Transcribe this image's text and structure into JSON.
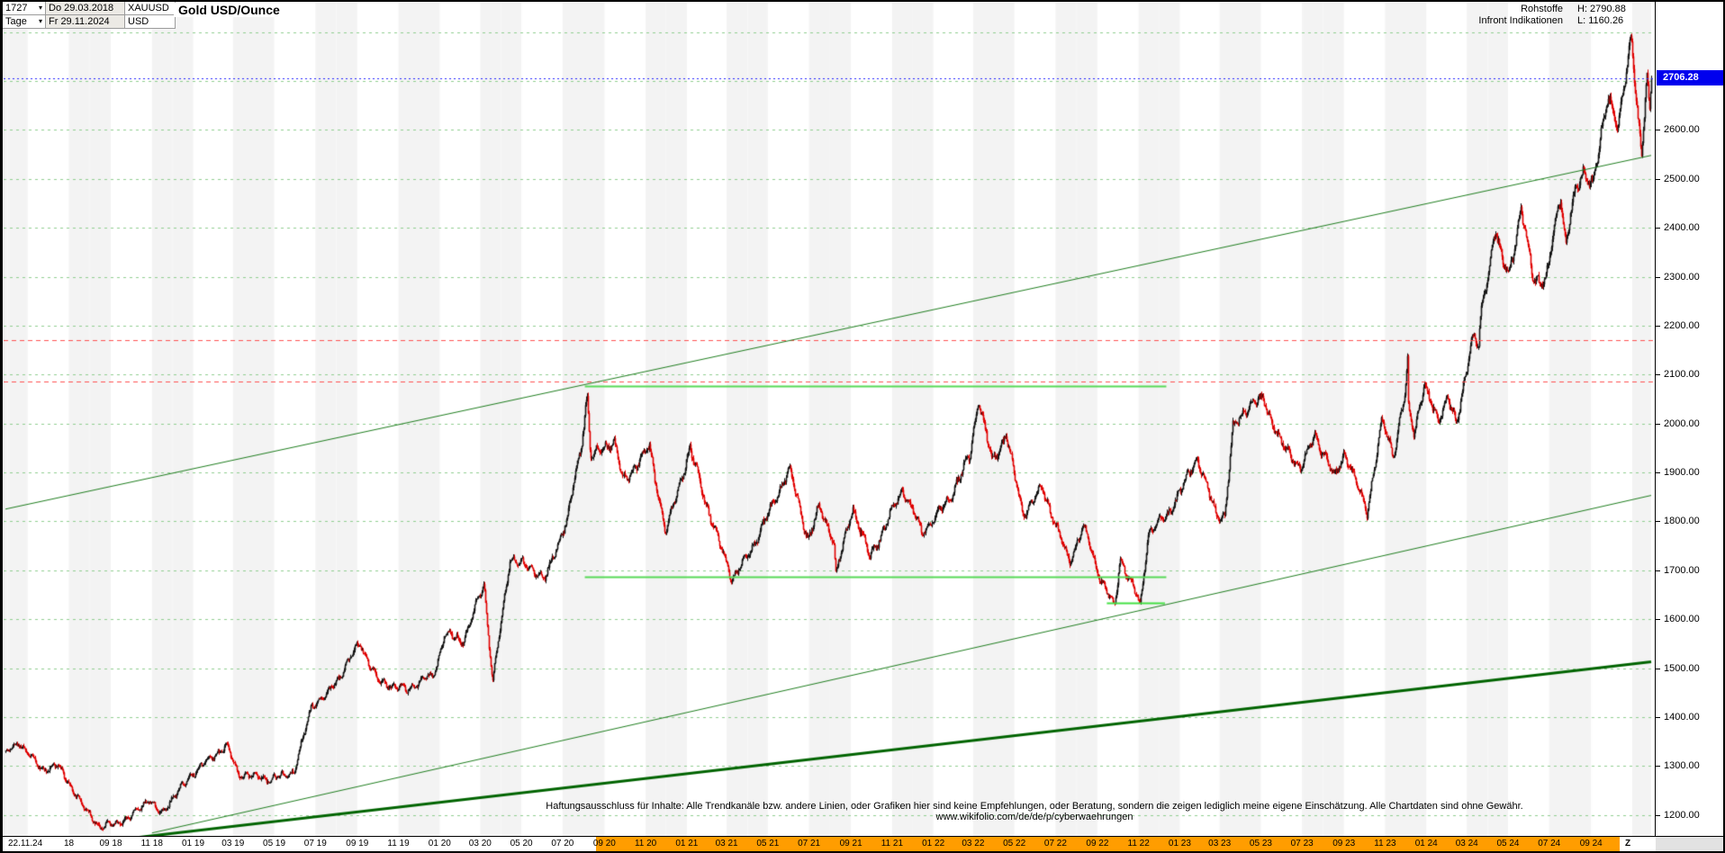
{
  "header": {
    "bars_count": "1727",
    "start_date": "Do 29.03.2018",
    "symbol": "XAUUSD",
    "timeframe": "Tage",
    "end_date": "Fr 29.11.2024",
    "currency": "USD",
    "title": "Gold USD/Ounce",
    "right": {
      "category": "Rohstoffe",
      "high": "H: 2790.88",
      "source": "Infront Indikationen",
      "low": "L: 1160.26"
    }
  },
  "icons": {
    "dropdown_arrow": "▾"
  },
  "colors": {
    "candle_up": "#151515",
    "candle_down": "#e00000",
    "grid": "#8fce8f",
    "band": "#f3f3f3",
    "highlight_orange": "#ff9d00",
    "last_price_bg": "#0000ee",
    "last_price_line": "#2222ff",
    "resistance": "#ff5050",
    "support_segment": "#57d957",
    "trend": "#1e7d1e",
    "trend_major": "#006400"
  },
  "price_axis": {
    "last_price": "2706.28",
    "ticks": [
      "2600.00",
      "2500.00",
      "2400.00",
      "2300.00",
      "2200.00",
      "2100.00",
      "2000.00",
      "1900.00",
      "1800.00",
      "1700.00",
      "1600.00",
      "1500.00",
      "1400.00",
      "1300.00",
      "1200.00"
    ]
  },
  "x_axis": {
    "z_label": "Z",
    "highlight": {
      "from": "2020-08-20",
      "color": "#ff9d00"
    },
    "labels": [
      {
        "label": "22.11.24",
        "fixed": "left"
      },
      {
        "label": "18",
        "date": "2018-07-01"
      },
      {
        "label": "09 18",
        "date": "2018-09-01"
      },
      {
        "label": "11 18",
        "date": "2018-11-01"
      },
      {
        "label": "01 19",
        "date": "2019-01-01"
      },
      {
        "label": "03 19",
        "date": "2019-03-01"
      },
      {
        "label": "05 19",
        "date": "2019-05-01"
      },
      {
        "label": "07 19",
        "date": "2019-07-01"
      },
      {
        "label": "09 19",
        "date": "2019-09-01"
      },
      {
        "label": "11 19",
        "date": "2019-11-01"
      },
      {
        "label": "01 20",
        "date": "2020-01-01"
      },
      {
        "label": "03 20",
        "date": "2020-03-01"
      },
      {
        "label": "05 20",
        "date": "2020-05-01"
      },
      {
        "label": "07 20",
        "date": "2020-07-01"
      },
      {
        "label": "09 20",
        "date": "2020-09-01"
      },
      {
        "label": "11 20",
        "date": "2020-11-01"
      },
      {
        "label": "01 21",
        "date": "2021-01-01"
      },
      {
        "label": "03 21",
        "date": "2021-03-01"
      },
      {
        "label": "05 21",
        "date": "2021-05-01"
      },
      {
        "label": "07 21",
        "date": "2021-07-01"
      },
      {
        "label": "09 21",
        "date": "2021-09-01"
      },
      {
        "label": "11 21",
        "date": "2021-11-01"
      },
      {
        "label": "01 22",
        "date": "2022-01-01"
      },
      {
        "label": "03 22",
        "date": "2022-03-01"
      },
      {
        "label": "05 22",
        "date": "2022-05-01"
      },
      {
        "label": "07 22",
        "date": "2022-07-01"
      },
      {
        "label": "09 22",
        "date": "2022-09-01"
      },
      {
        "label": "11 22",
        "date": "2022-11-01"
      },
      {
        "label": "01 23",
        "date": "2023-01-01"
      },
      {
        "label": "03 23",
        "date": "2023-03-01"
      },
      {
        "label": "05 23",
        "date": "2023-05-01"
      },
      {
        "label": "07 23",
        "date": "2023-07-01"
      },
      {
        "label": "09 23",
        "date": "2023-09-01"
      },
      {
        "label": "11 23",
        "date": "2023-11-01"
      },
      {
        "label": "01 24",
        "date": "2024-01-01"
      },
      {
        "label": "03 24",
        "date": "2024-03-01"
      },
      {
        "label": "05 24",
        "date": "2024-05-01"
      },
      {
        "label": "07 24",
        "date": "2024-07-01"
      },
      {
        "label": "09 24",
        "date": "2024-09-01"
      }
    ]
  },
  "footer": {
    "disclaimer": "Haftungsausschluss für Inhalte: Alle Trendkanäle bzw. andere Linien, oder Grafiken hier sind keine Empfehlungen, oder Beratung, sondern die zeigen lediglich meine eigene Einschätzung. Alle Chartdaten sind ohne Gewähr. www.wikifolio.com/de/de/p/cyberwaehrungen"
  },
  "chart_data": {
    "type": "candlestick",
    "title": "Gold USD/Ounce",
    "symbol": "XAUUSD",
    "timeframe": "Tage",
    "bars_count": 1727,
    "x_range": [
      "2018-03-29",
      "2024-11-29"
    ],
    "high": 2790.88,
    "low": 1160.26,
    "last": 2706.28,
    "ylim": [
      1157,
      2862
    ],
    "y_tick_step": 100,
    "grid": {
      "horizontal_step": 100,
      "style": "dashed",
      "color": "#8fce8f"
    },
    "anchors": [
      [
        "2018-03-29",
        1325
      ],
      [
        "2018-04-18",
        1349
      ],
      [
        "2018-05-21",
        1292
      ],
      [
        "2018-06-14",
        1302
      ],
      [
        "2018-07-19",
        1222
      ],
      [
        "2018-08-16",
        1174
      ],
      [
        "2018-09-28",
        1192
      ],
      [
        "2018-10-26",
        1233
      ],
      [
        "2018-11-13",
        1202
      ],
      [
        "2018-12-28",
        1281
      ],
      [
        "2019-01-31",
        1323
      ],
      [
        "2019-02-20",
        1341
      ],
      [
        "2019-03-07",
        1285
      ],
      [
        "2019-04-23",
        1272
      ],
      [
        "2019-05-30",
        1288
      ],
      [
        "2019-06-25",
        1423
      ],
      [
        "2019-07-18",
        1446
      ],
      [
        "2019-08-13",
        1501
      ],
      [
        "2019-09-04",
        1552
      ],
      [
        "2019-10-01",
        1472
      ],
      [
        "2019-11-12",
        1456
      ],
      [
        "2019-12-23",
        1487
      ],
      [
        "2020-01-08",
        1571
      ],
      [
        "2020-02-05",
        1556
      ],
      [
        "2020-03-06",
        1674
      ],
      [
        "2020-03-19",
        1471
      ],
      [
        "2020-04-14",
        1727
      ],
      [
        "2020-06-05",
        1683
      ],
      [
        "2020-07-08",
        1810
      ],
      [
        "2020-07-28",
        1954
      ],
      [
        "2020-08-06",
        2063
      ],
      [
        "2020-08-11",
        1932
      ],
      [
        "2020-09-15",
        1966
      ],
      [
        "2020-09-28",
        1881
      ],
      [
        "2020-11-06",
        1951
      ],
      [
        "2020-11-30",
        1776
      ],
      [
        "2021-01-05",
        1949
      ],
      [
        "2021-01-27",
        1844
      ],
      [
        "2021-03-08",
        1683
      ],
      [
        "2021-04-01",
        1729
      ],
      [
        "2021-06-01",
        1907
      ],
      [
        "2021-06-29",
        1761
      ],
      [
        "2021-07-15",
        1829
      ],
      [
        "2021-08-06",
        1763
      ],
      [
        "2021-08-09",
        1690
      ],
      [
        "2021-09-03",
        1828
      ],
      [
        "2021-09-29",
        1726
      ],
      [
        "2021-11-16",
        1867
      ],
      [
        "2021-12-15",
        1777
      ],
      [
        "2022-01-25",
        1848
      ],
      [
        "2022-02-24",
        1936
      ],
      [
        "2022-03-08",
        2052
      ],
      [
        "2022-03-29",
        1919
      ],
      [
        "2022-04-18",
        1978
      ],
      [
        "2022-05-13",
        1811
      ],
      [
        "2022-06-10",
        1871
      ],
      [
        "2022-07-21",
        1715
      ],
      [
        "2022-08-10",
        1792
      ],
      [
        "2022-09-01",
        1697
      ],
      [
        "2022-09-26",
        1622
      ],
      [
        "2022-10-04",
        1726
      ],
      [
        "2022-11-03",
        1629
      ],
      [
        "2022-11-15",
        1777
      ],
      [
        "2022-12-13",
        1811
      ],
      [
        "2023-01-26",
        1930
      ],
      [
        "2023-02-24",
        1811
      ],
      [
        "2023-03-08",
        1813
      ],
      [
        "2023-03-20",
        1989
      ],
      [
        "2023-04-13",
        2040
      ],
      [
        "2023-05-04",
        2050
      ],
      [
        "2023-05-30",
        1959
      ],
      [
        "2023-06-29",
        1908
      ],
      [
        "2023-07-20",
        1977
      ],
      [
        "2023-08-17",
        1889
      ],
      [
        "2023-09-01",
        1940
      ],
      [
        "2023-10-05",
        1820
      ],
      [
        "2023-10-27",
        2006
      ],
      [
        "2023-11-13",
        1937
      ],
      [
        "2023-12-01",
        2071
      ],
      [
        "2023-12-04",
        2130
      ],
      [
        "2023-12-05",
        2028
      ],
      [
        "2023-12-13",
        1981
      ],
      [
        "2023-12-28",
        2077
      ],
      [
        "2024-01-17",
        2006
      ],
      [
        "2024-02-01",
        2055
      ],
      [
        "2024-02-14",
        1992
      ],
      [
        "2024-03-08",
        2178
      ],
      [
        "2024-03-18",
        2160
      ],
      [
        "2024-03-21",
        2220
      ],
      [
        "2024-04-12",
        2401
      ],
      [
        "2024-04-22",
        2327
      ],
      [
        "2024-05-02",
        2304
      ],
      [
        "2024-05-20",
        2438
      ],
      [
        "2024-06-07",
        2293
      ],
      [
        "2024-06-26",
        2298
      ],
      [
        "2024-07-17",
        2469
      ],
      [
        "2024-07-25",
        2364
      ],
      [
        "2024-08-02",
        2443
      ],
      [
        "2024-08-20",
        2514
      ],
      [
        "2024-09-04",
        2494
      ],
      [
        "2024-09-26",
        2672
      ],
      [
        "2024-10-10",
        2608
      ],
      [
        "2024-10-23",
        2716
      ],
      [
        "2024-10-30",
        2787
      ],
      [
        "2024-11-14",
        2547
      ],
      [
        "2024-11-22",
        2716
      ],
      [
        "2024-11-26",
        2632
      ],
      [
        "2024-11-29",
        2706.28
      ]
    ],
    "overlays": {
      "last_price_line": {
        "price": 2706.28,
        "style": "dotted",
        "color": "#2222ff"
      },
      "resistance_lines": [
        {
          "price": 2170,
          "style": "dashed",
          "color": "#ff5050"
        },
        {
          "price": 2086,
          "style": "dashed",
          "color": "#ff5050"
        }
      ],
      "horizontal_segments": [
        {
          "price": 2076,
          "from": "2020-08-03",
          "to": "2022-12-12",
          "color": "#57d957"
        },
        {
          "price": 1687,
          "from": "2020-08-03",
          "to": "2022-12-12",
          "color": "#57d957"
        },
        {
          "price": 1634,
          "from": "2022-09-15",
          "to": "2022-12-10",
          "color": "#44e044"
        }
      ],
      "trendlines": [
        {
          "from": [
            "2018-03-29",
            1825
          ],
          "to": [
            "2024-11-29",
            2548
          ],
          "color": "#1e7d1e",
          "width": 1
        },
        {
          "from": [
            "2018-11-01",
            1163
          ],
          "to": [
            "2024-11-29",
            1853
          ],
          "color": "#1e7d1e",
          "width": 1
        },
        {
          "from": [
            "2018-06-15",
            1135
          ],
          "to": [
            "2024-11-29",
            1513
          ],
          "color": "#006400",
          "width": 3
        }
      ]
    }
  }
}
